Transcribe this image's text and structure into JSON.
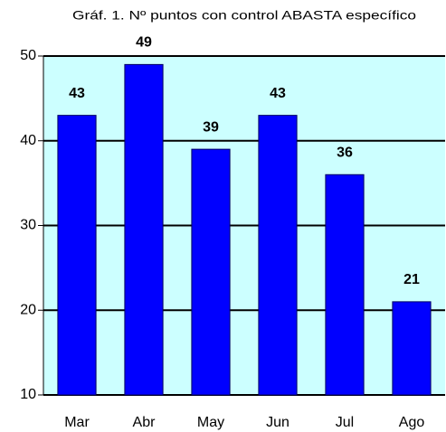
{
  "chart_data": {
    "type": "bar",
    "title": "Gráf. 1. Nº puntos con control ABASTA específico",
    "categories": [
      "Mar",
      "Abr",
      "May",
      "Jun",
      "Jul",
      "Ago"
    ],
    "values": [
      43,
      49,
      39,
      43,
      36,
      21
    ],
    "color": "#0000ff",
    "background": "#ccffff",
    "ylim": [
      10,
      50
    ],
    "yticks": [
      10,
      20,
      30,
      40,
      50
    ],
    "grid": true
  }
}
